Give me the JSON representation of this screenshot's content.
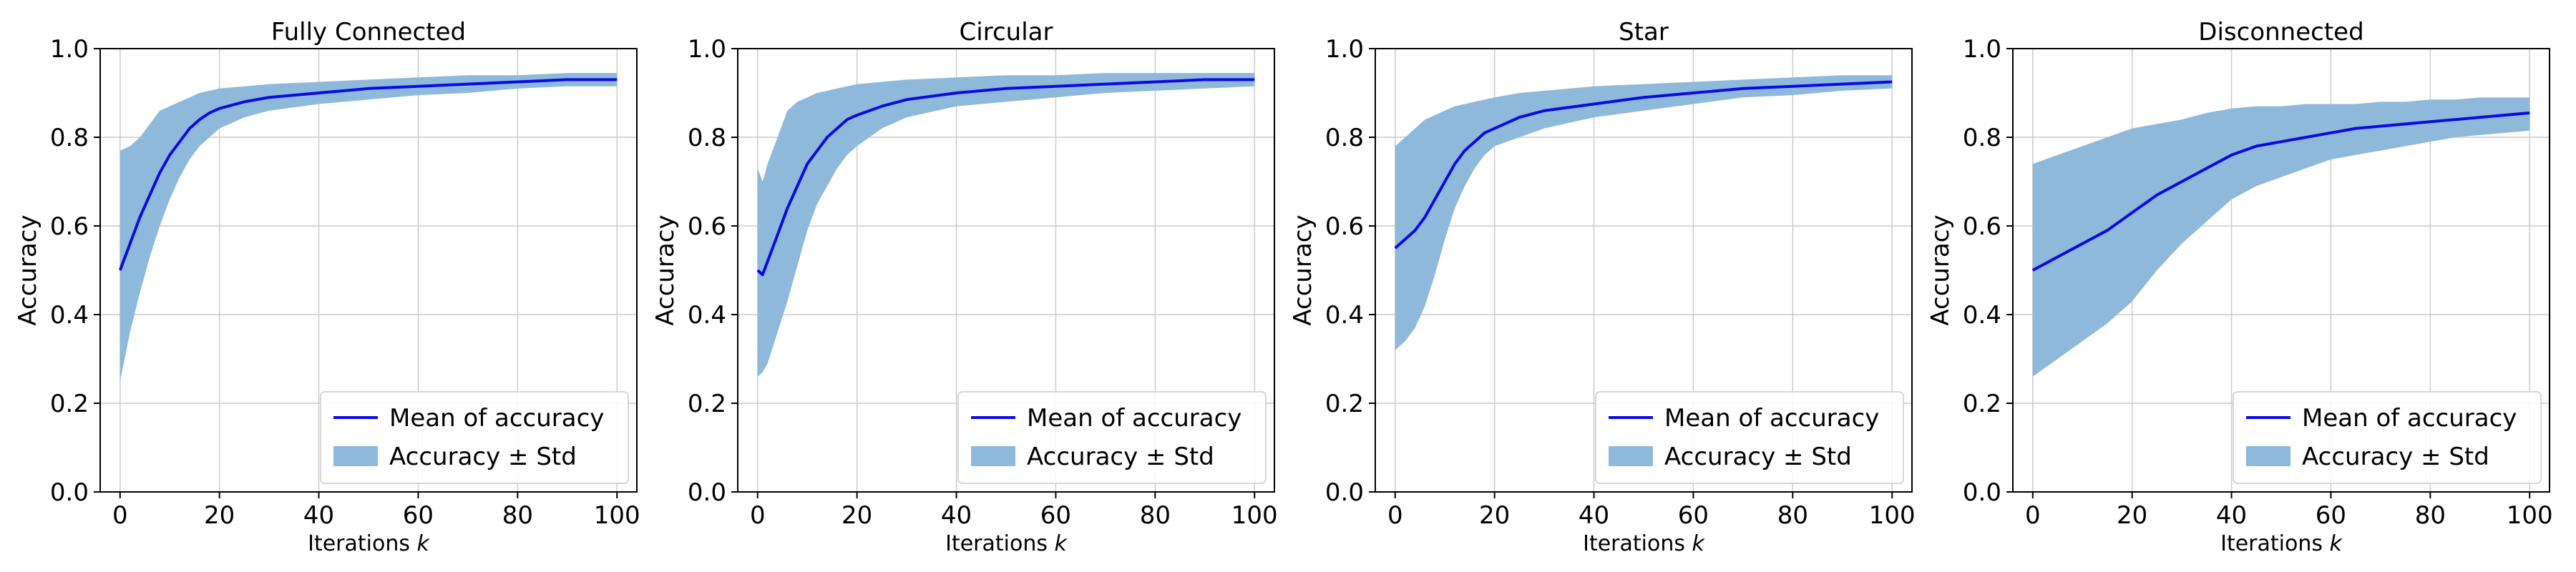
{
  "figure": {
    "background": "#ffffff",
    "band_color": "#8fb9da",
    "line_color": "#0a0ae6",
    "grid_color": "#cccccc"
  },
  "legend": {
    "line_label": "Mean of accuracy",
    "band_label": "Accuracy ± Std",
    "placement": "lower-right"
  },
  "chart_data": [
    {
      "type": "line",
      "title": "Fully Connected",
      "xlabel": "Iterations",
      "xlabel_var": "k",
      "ylabel": "Accuracy",
      "xlim": [
        -4,
        104
      ],
      "ylim": [
        0.0,
        1.0
      ],
      "xticks": [
        0,
        20,
        40,
        60,
        80,
        100
      ],
      "yticks": [
        0.0,
        0.2,
        0.4,
        0.6,
        0.8,
        1.0
      ],
      "grid": true,
      "series": [
        {
          "name": "Mean of accuracy",
          "x": [
            0,
            2,
            4,
            6,
            8,
            10,
            12,
            14,
            16,
            18,
            20,
            25,
            30,
            40,
            50,
            60,
            70,
            80,
            90,
            100
          ],
          "values": [
            0.5,
            0.56,
            0.62,
            0.67,
            0.72,
            0.76,
            0.79,
            0.82,
            0.84,
            0.855,
            0.865,
            0.88,
            0.89,
            0.9,
            0.91,
            0.915,
            0.92,
            0.925,
            0.93,
            0.93
          ]
        },
        {
          "name": "Accuracy ± Std",
          "x": [
            0,
            2,
            4,
            6,
            8,
            10,
            12,
            14,
            16,
            18,
            20,
            25,
            30,
            40,
            50,
            60,
            70,
            80,
            90,
            100
          ],
          "upper": [
            0.77,
            0.78,
            0.8,
            0.83,
            0.86,
            0.87,
            0.88,
            0.89,
            0.9,
            0.905,
            0.91,
            0.915,
            0.92,
            0.925,
            0.93,
            0.935,
            0.94,
            0.94,
            0.945,
            0.945
          ],
          "lower": [
            0.25,
            0.36,
            0.45,
            0.53,
            0.6,
            0.66,
            0.71,
            0.75,
            0.78,
            0.8,
            0.82,
            0.845,
            0.86,
            0.875,
            0.885,
            0.895,
            0.9,
            0.91,
            0.915,
            0.915
          ]
        }
      ]
    },
    {
      "type": "line",
      "title": "Circular",
      "xlabel": "Iterations",
      "xlabel_var": "k",
      "ylabel": "Accuracy",
      "xlim": [
        -4,
        104
      ],
      "ylim": [
        0.0,
        1.0
      ],
      "xticks": [
        0,
        20,
        40,
        60,
        80,
        100
      ],
      "yticks": [
        0.0,
        0.2,
        0.4,
        0.6,
        0.8,
        1.0
      ],
      "grid": true,
      "series": [
        {
          "name": "Mean of accuracy",
          "x": [
            0,
            1,
            2,
            4,
            6,
            8,
            10,
            12,
            14,
            16,
            18,
            20,
            25,
            30,
            40,
            50,
            60,
            70,
            80,
            90,
            100
          ],
          "values": [
            0.5,
            0.49,
            0.52,
            0.58,
            0.64,
            0.69,
            0.74,
            0.77,
            0.8,
            0.82,
            0.84,
            0.85,
            0.87,
            0.885,
            0.9,
            0.91,
            0.915,
            0.92,
            0.925,
            0.93,
            0.93
          ]
        },
        {
          "name": "Accuracy ± Std",
          "x": [
            0,
            1,
            2,
            4,
            6,
            8,
            10,
            12,
            14,
            16,
            18,
            20,
            25,
            30,
            40,
            50,
            60,
            70,
            80,
            90,
            100
          ],
          "upper": [
            0.73,
            0.7,
            0.74,
            0.8,
            0.86,
            0.88,
            0.89,
            0.9,
            0.905,
            0.91,
            0.915,
            0.92,
            0.925,
            0.93,
            0.935,
            0.94,
            0.94,
            0.945,
            0.945,
            0.945,
            0.945
          ],
          "lower": [
            0.26,
            0.27,
            0.29,
            0.36,
            0.43,
            0.51,
            0.59,
            0.65,
            0.69,
            0.73,
            0.76,
            0.78,
            0.82,
            0.845,
            0.87,
            0.88,
            0.89,
            0.9,
            0.905,
            0.91,
            0.915
          ]
        }
      ]
    },
    {
      "type": "line",
      "title": "Star",
      "xlabel": "Iterations",
      "xlabel_var": "k",
      "ylabel": "Accuracy",
      "xlim": [
        -4,
        104
      ],
      "ylim": [
        0.0,
        1.0
      ],
      "xticks": [
        0,
        20,
        40,
        60,
        80,
        100
      ],
      "yticks": [
        0.0,
        0.2,
        0.4,
        0.6,
        0.8,
        1.0
      ],
      "grid": true,
      "series": [
        {
          "name": "Mean of accuracy",
          "x": [
            0,
            2,
            4,
            6,
            8,
            10,
            12,
            14,
            16,
            18,
            20,
            25,
            30,
            40,
            50,
            60,
            70,
            80,
            90,
            100
          ],
          "values": [
            0.55,
            0.57,
            0.59,
            0.62,
            0.66,
            0.7,
            0.74,
            0.77,
            0.79,
            0.81,
            0.82,
            0.845,
            0.86,
            0.875,
            0.89,
            0.9,
            0.91,
            0.915,
            0.92,
            0.925
          ]
        },
        {
          "name": "Accuracy ± Std",
          "x": [
            0,
            2,
            4,
            6,
            8,
            10,
            12,
            14,
            16,
            18,
            20,
            25,
            30,
            40,
            50,
            60,
            70,
            80,
            90,
            100
          ],
          "upper": [
            0.78,
            0.8,
            0.82,
            0.84,
            0.85,
            0.86,
            0.87,
            0.875,
            0.88,
            0.885,
            0.89,
            0.9,
            0.905,
            0.915,
            0.92,
            0.925,
            0.93,
            0.935,
            0.94,
            0.94
          ],
          "lower": [
            0.32,
            0.34,
            0.37,
            0.42,
            0.49,
            0.57,
            0.64,
            0.69,
            0.73,
            0.76,
            0.78,
            0.8,
            0.82,
            0.845,
            0.86,
            0.875,
            0.89,
            0.895,
            0.905,
            0.91
          ]
        }
      ]
    },
    {
      "type": "line",
      "title": "Disconnected",
      "xlabel": "Iterations",
      "xlabel_var": "k",
      "ylabel": "Accuracy",
      "xlim": [
        -4,
        104
      ],
      "ylim": [
        0.0,
        1.0
      ],
      "xticks": [
        0,
        20,
        40,
        60,
        80,
        100
      ],
      "yticks": [
        0.0,
        0.2,
        0.4,
        0.6,
        0.8,
        1.0
      ],
      "grid": true,
      "series": [
        {
          "name": "Mean of accuracy",
          "x": [
            0,
            5,
            10,
            15,
            20,
            25,
            30,
            35,
            40,
            45,
            50,
            55,
            60,
            65,
            70,
            75,
            80,
            85,
            90,
            95,
            100
          ],
          "values": [
            0.5,
            0.53,
            0.56,
            0.59,
            0.63,
            0.67,
            0.7,
            0.73,
            0.76,
            0.78,
            0.79,
            0.8,
            0.81,
            0.82,
            0.825,
            0.83,
            0.835,
            0.84,
            0.845,
            0.85,
            0.855
          ]
        },
        {
          "name": "Accuracy ± Std",
          "x": [
            0,
            5,
            10,
            15,
            20,
            25,
            30,
            35,
            40,
            45,
            50,
            55,
            60,
            65,
            70,
            75,
            80,
            85,
            90,
            95,
            100
          ],
          "upper": [
            0.74,
            0.76,
            0.78,
            0.8,
            0.82,
            0.83,
            0.84,
            0.855,
            0.865,
            0.87,
            0.87,
            0.875,
            0.875,
            0.875,
            0.88,
            0.88,
            0.885,
            0.885,
            0.89,
            0.89,
            0.89
          ],
          "lower": [
            0.26,
            0.3,
            0.34,
            0.38,
            0.43,
            0.5,
            0.56,
            0.61,
            0.66,
            0.69,
            0.71,
            0.73,
            0.75,
            0.76,
            0.77,
            0.78,
            0.79,
            0.8,
            0.805,
            0.81,
            0.815
          ]
        }
      ]
    }
  ]
}
